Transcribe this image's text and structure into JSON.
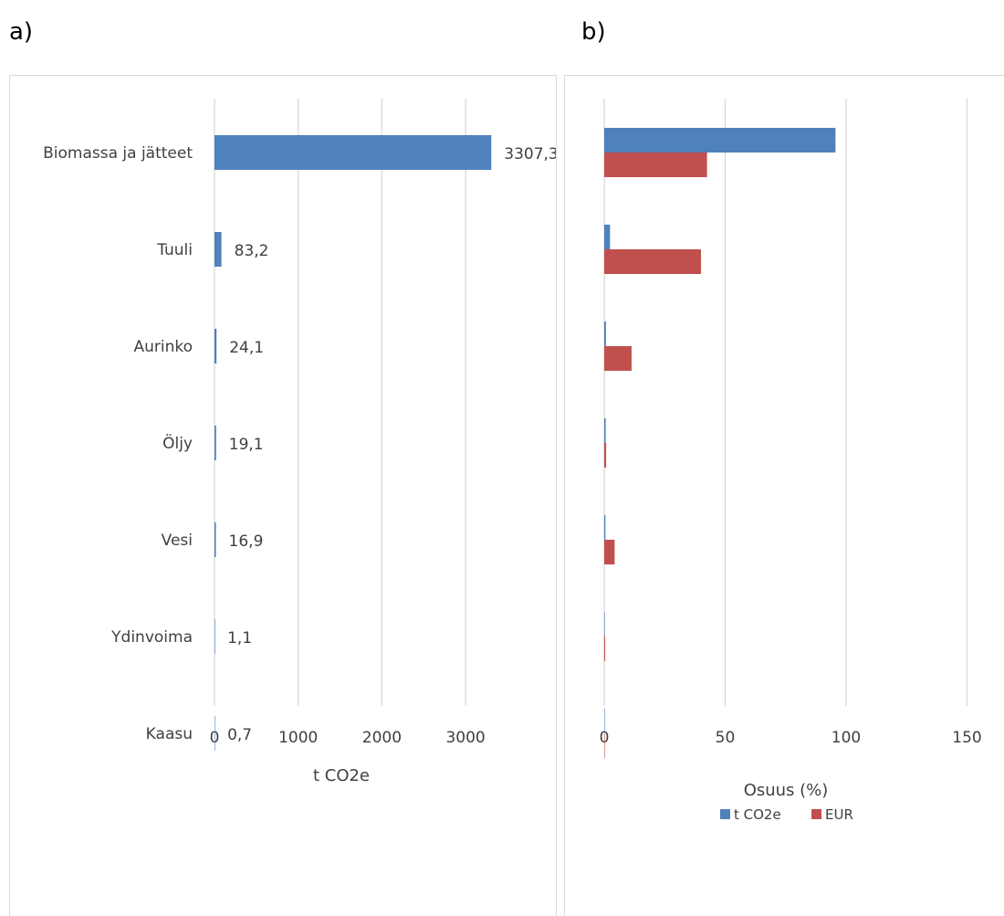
{
  "panels": {
    "a_label": "a)",
    "b_label": "b)"
  },
  "colors": {
    "co2": "#4f81bd",
    "eur": "#c0504d",
    "grid": "#d9d9d9",
    "text": "#404040"
  },
  "chart_data": [
    {
      "type": "bar",
      "orientation": "horizontal",
      "panel": "a)",
      "categories": [
        "Biomassa ja jätteet",
        "Tuuli",
        "Aurinko",
        "Öljy",
        "Vesi",
        "Ydinvoima",
        "Kaasu"
      ],
      "values": [
        3307.3,
        83.2,
        24.1,
        19.1,
        16.9,
        1.1,
        0.7
      ],
      "data_labels": [
        "3307,3",
        "83,2",
        "24,1",
        "19,1",
        "16,9",
        "1,1",
        "0,7"
      ],
      "xlabel": "t CO2e",
      "xlim": [
        0,
        4000
      ],
      "xticks": [
        0,
        1000,
        2000,
        3000
      ],
      "grid": true
    },
    {
      "type": "bar",
      "orientation": "horizontal",
      "panel": "b)",
      "categories": [
        "Biomassa ja jätteet",
        "Tuuli",
        "Aurinko",
        "Öljy",
        "Vesi",
        "Ydinvoima",
        "Kaasu"
      ],
      "series": [
        {
          "name": "t CO2e",
          "values": [
            95.6,
            2.4,
            0.7,
            0.6,
            0.5,
            0.0,
            0.0
          ]
        },
        {
          "name": "EUR",
          "values": [
            42.5,
            40.0,
            11.3,
            0.8,
            4.3,
            0.4,
            0.1
          ]
        }
      ],
      "xlabel": "Osuus (%)",
      "xlim": [
        0,
        150
      ],
      "xticks": [
        0,
        50,
        100,
        150
      ],
      "legend": "bottom",
      "grid": true
    }
  ]
}
